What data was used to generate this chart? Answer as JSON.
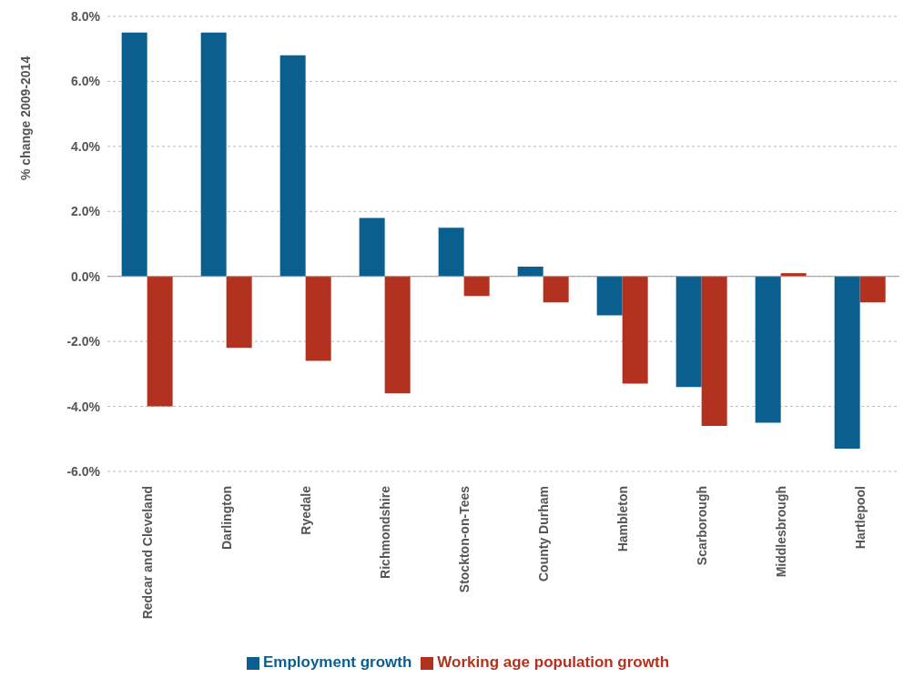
{
  "chart_data": {
    "type": "bar",
    "ylabel": "% change 2009-2014",
    "categories": [
      "Redcar and Cleveland",
      "Darlington",
      "Ryedale",
      "Richmondshire",
      "Stockton-on-Tees",
      "County Durham",
      "Hambleton",
      "Scarborough",
      "Middlesbrough",
      "Hartlepool"
    ],
    "series": [
      {
        "name": "Employment growth",
        "color": "#0a5f8e",
        "values": [
          7.5,
          7.5,
          6.8,
          1.8,
          1.5,
          0.3,
          -1.2,
          -3.4,
          -4.5,
          -5.3
        ]
      },
      {
        "name": "Working age population growth",
        "color": "#b3321f",
        "values": [
          -4.0,
          -2.2,
          -2.6,
          -3.6,
          -0.6,
          -0.8,
          -3.3,
          -4.6,
          0.1,
          -0.8
        ]
      }
    ],
    "ylim": [
      -6,
      8
    ],
    "yticks": [
      {
        "value": -6,
        "label": "-6.0%"
      },
      {
        "value": -4,
        "label": "-4.0%"
      },
      {
        "value": -2,
        "label": "-2.0%"
      },
      {
        "value": 0,
        "label": "0.0%"
      },
      {
        "value": 2,
        "label": "2.0%"
      },
      {
        "value": 4,
        "label": "4.0%"
      },
      {
        "value": 6,
        "label": "6.0%"
      },
      {
        "value": 8,
        "label": "8.0%"
      }
    ],
    "grid": "y",
    "legend": "bottom"
  }
}
